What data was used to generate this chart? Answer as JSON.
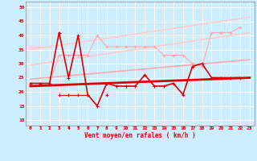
{
  "x": [
    0,
    1,
    2,
    3,
    4,
    5,
    6,
    7,
    8,
    9,
    10,
    11,
    12,
    13,
    14,
    15,
    16,
    17,
    18,
    19,
    20,
    21,
    22,
    23
  ],
  "line1_y": [
    23,
    23,
    23,
    41,
    25,
    40,
    19,
    15,
    23,
    22,
    22,
    22,
    26,
    22,
    22,
    23,
    19,
    29,
    30,
    25,
    25,
    25,
    25,
    null
  ],
  "line2_y": [
    null,
    null,
    null,
    19,
    19,
    19,
    19,
    null,
    19,
    null,
    null,
    null,
    null,
    null,
    null,
    null,
    null,
    null,
    null,
    null,
    null,
    null,
    null,
    null
  ],
  "line3_y": [
    23,
    23,
    23,
    33,
    33,
    33,
    33,
    40,
    36,
    36,
    36,
    36,
    36,
    36,
    33,
    33,
    33,
    30,
    29,
    41,
    41,
    41,
    43,
    null
  ],
  "line4_y": [
    36,
    36,
    36,
    null,
    null,
    null,
    null,
    null,
    null,
    null,
    null,
    null,
    null,
    null,
    null,
    null,
    null,
    null,
    null,
    null,
    null,
    null,
    null,
    null
  ],
  "trend1": [
    22.0,
    22.13,
    22.26,
    22.39,
    22.52,
    22.65,
    22.78,
    22.91,
    23.04,
    23.17,
    23.3,
    23.43,
    23.56,
    23.69,
    23.82,
    23.95,
    24.08,
    24.21,
    24.34,
    24.47,
    24.6,
    24.73,
    24.86,
    24.99
  ],
  "trend2": [
    24.5,
    24.8,
    25.1,
    25.4,
    25.7,
    26.0,
    26.3,
    26.6,
    26.9,
    27.2,
    27.5,
    27.8,
    28.1,
    28.4,
    28.7,
    29.0,
    29.3,
    29.6,
    29.9,
    30.2,
    30.5,
    30.8,
    31.1,
    31.4
  ],
  "trend3": [
    29.5,
    30.0,
    30.5,
    31.0,
    31.5,
    32.0,
    32.5,
    33.0,
    33.5,
    34.0,
    34.5,
    35.0,
    35.5,
    36.0,
    36.5,
    37.0,
    37.5,
    38.0,
    38.5,
    39.0,
    39.5,
    40.0,
    40.5,
    41.0
  ],
  "trend4": [
    35.0,
    35.5,
    36.0,
    36.5,
    37.0,
    37.5,
    38.0,
    38.5,
    39.0,
    39.5,
    40.0,
    40.5,
    41.0,
    41.5,
    42.0,
    42.5,
    43.0,
    43.5,
    44.0,
    44.5,
    45.0,
    45.5,
    46.0,
    46.5
  ],
  "bg_color": "#cceeff",
  "grid_color": "#ffffff",
  "xlabel": "Vent moyen/en rafales ( km/h )",
  "ylim": [
    8,
    52
  ],
  "xlim": [
    -0.5,
    23.5
  ],
  "yticks": [
    10,
    15,
    20,
    25,
    30,
    35,
    40,
    45,
    50
  ],
  "xticks": [
    0,
    1,
    2,
    3,
    4,
    5,
    6,
    7,
    8,
    9,
    10,
    11,
    12,
    13,
    14,
    15,
    16,
    17,
    18,
    19,
    20,
    21,
    22,
    23
  ],
  "c_dark_red": "#dd0000",
  "c_med_red": "#ee6666",
  "c_light_red": "#ffaaaa",
  "c_lightest_red": "#ffcccc"
}
